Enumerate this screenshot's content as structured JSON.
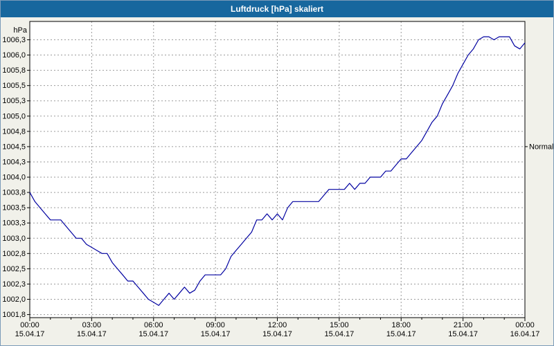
{
  "window": {
    "title": "Luftdruck [hPa] skaliert"
  },
  "colors": {
    "titlebar": "#17679e",
    "title_text": "#ffffff",
    "background": "#f1f1ea",
    "plot_background": "#ffffff",
    "grid": "#9a9a9a",
    "axis": "#000000",
    "tick_label": "#000000",
    "pressure_line": "#0000a0"
  },
  "chart_data": {
    "type": "line",
    "title": "Luftdruck [hPa] skaliert",
    "xlabel": "",
    "ylabel": "hPa",
    "grid": "dashed",
    "legend": "none",
    "ylim": [
      1001.7,
      1006.55
    ],
    "y_ticks": [
      {
        "value": 1001.75,
        "label": "1001,8"
      },
      {
        "value": 1002.0,
        "label": "1002,0"
      },
      {
        "value": 1002.25,
        "label": "1002,3"
      },
      {
        "value": 1002.5,
        "label": "1002,5"
      },
      {
        "value": 1002.75,
        "label": "1002,8"
      },
      {
        "value": 1003.0,
        "label": "1003,0"
      },
      {
        "value": 1003.25,
        "label": "1003,3"
      },
      {
        "value": 1003.5,
        "label": "1003,5"
      },
      {
        "value": 1003.75,
        "label": "1003,8"
      },
      {
        "value": 1004.0,
        "label": "1004,0"
      },
      {
        "value": 1004.25,
        "label": "1004,3"
      },
      {
        "value": 1004.5,
        "label": "1004,5"
      },
      {
        "value": 1004.75,
        "label": "1004,8"
      },
      {
        "value": 1005.0,
        "label": "1005,0"
      },
      {
        "value": 1005.25,
        "label": "1005,3"
      },
      {
        "value": 1005.5,
        "label": "1005,5"
      },
      {
        "value": 1005.75,
        "label": "1005,8"
      },
      {
        "value": 1006.0,
        "label": "1006,0"
      },
      {
        "value": 1006.25,
        "label": "1006,3"
      }
    ],
    "x_range_hours": [
      0,
      24
    ],
    "x_minor_step_hours": 1,
    "x_ticks": [
      {
        "hour": 0,
        "time": "00:00",
        "date": "15.04.17"
      },
      {
        "hour": 3,
        "time": "03:00",
        "date": "15.04.17"
      },
      {
        "hour": 6,
        "time": "06:00",
        "date": "15.04.17"
      },
      {
        "hour": 9,
        "time": "09:00",
        "date": "15.04.17"
      },
      {
        "hour": 12,
        "time": "12:00",
        "date": "15.04.17"
      },
      {
        "hour": 15,
        "time": "15:00",
        "date": "15.04.17"
      },
      {
        "hour": 18,
        "time": "18:00",
        "date": "15.04.17"
      },
      {
        "hour": 21,
        "time": "21:00",
        "date": "15.04.17"
      },
      {
        "hour": 24,
        "time": "00:00",
        "date": "16.04.17"
      }
    ],
    "annotations": [
      {
        "label": "Normal",
        "value": 1004.5
      }
    ],
    "series": [
      {
        "name": "Luftdruck",
        "x_start_hour": 0,
        "x_step_hours": 0.25,
        "values": [
          1003.75,
          1003.6,
          1003.5,
          1003.4,
          1003.3,
          1003.3,
          1003.3,
          1003.2,
          1003.1,
          1003.0,
          1003.0,
          1002.9,
          1002.85,
          1002.8,
          1002.75,
          1002.75,
          1002.6,
          1002.5,
          1002.4,
          1002.3,
          1002.3,
          1002.2,
          1002.1,
          1002.0,
          1001.95,
          1001.9,
          1002.0,
          1002.1,
          1002.0,
          1002.1,
          1002.2,
          1002.1,
          1002.15,
          1002.3,
          1002.4,
          1002.4,
          1002.4,
          1002.4,
          1002.5,
          1002.7,
          1002.8,
          1002.9,
          1003.0,
          1003.1,
          1003.3,
          1003.3,
          1003.4,
          1003.3,
          1003.4,
          1003.3,
          1003.5,
          1003.6,
          1003.6,
          1003.6,
          1003.6,
          1003.6,
          1003.6,
          1003.7,
          1003.8,
          1003.8,
          1003.8,
          1003.8,
          1003.9,
          1003.8,
          1003.9,
          1003.9,
          1004.0,
          1004.0,
          1004.0,
          1004.1,
          1004.1,
          1004.2,
          1004.3,
          1004.3,
          1004.4,
          1004.5,
          1004.6,
          1004.75,
          1004.9,
          1005.0,
          1005.2,
          1005.35,
          1005.5,
          1005.7,
          1005.85,
          1006.0,
          1006.1,
          1006.25,
          1006.3,
          1006.3,
          1006.25,
          1006.3,
          1006.3,
          1006.3,
          1006.15,
          1006.1,
          1006.2
        ]
      }
    ]
  }
}
